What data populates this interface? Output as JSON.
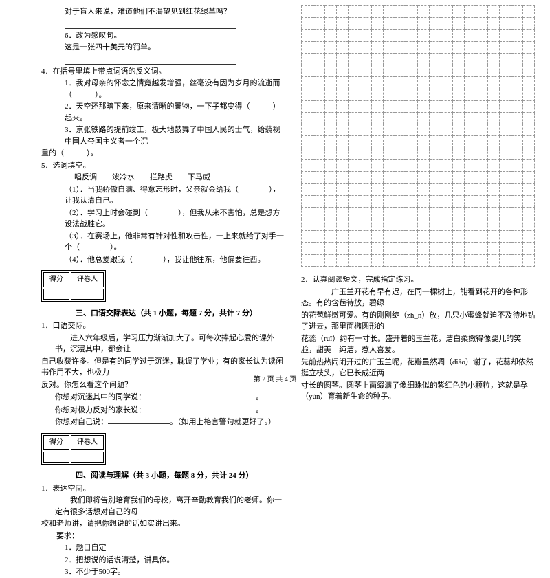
{
  "left": {
    "line1": "对于盲人来说，难道他们不渴望见到红花绿草吗？",
    "q6a": "6．改为感叹句。",
    "q6b": "这是一张四十美元的罚单。",
    "q4": "4．在括号里填上带点词语的反义词。",
    "q4_1": "1．我对母亲的怀念之情竟越发增强，丝毫没有因为岁月的流逝而（　　　）。",
    "q4_2": "2．天空还那暗下来，原来清晰的景物，一下子都变得（　　　）起来。",
    "q4_3": "3．京张铁路的提前竣工，极大地鼓舞了中国人民的士气，给藐视中国人帝国主义者一个沉",
    "q4_3b": "重的（　　　）。",
    "q5": "5．选词填空。",
    "q5_words": "唱反调　　泼冷水　　拦路虎　　下马威",
    "q5_1": "（1）．当我骄傲自满、得意忘形时，父亲就会给我（　　　　），让我认清自己。",
    "q5_2": "（2）．学习上时会碰到（　　　　），但我从来不害怕，总是想方设法战胜它。",
    "q5_3": "（3）．在赛场上，他非常有针对性和攻击性，一上来就给了对手一个（　　　　）。",
    "q5_4": "（4）．他总爱跟我（　　　　），我让他往东，他偏要往西。",
    "score_col1": "得分",
    "score_col2": "评卷人",
    "section3": "三、口语交际表达（共 1 小题，每题 7 分，共计 7 分）",
    "s3_1": "1．口语交际。",
    "s3_p1": "　　进入六年级后，学习压力渐渐加大了。可每次捧起心爱的课外书，沉浸其中，都会让",
    "s3_p2": "自己收获许多。但是有的同学过于沉迷，耽误了学业；有的家长认为读闲书作用不大，也极力",
    "s3_p3": "反对。你怎么看这个问题？",
    "s3_a": "你想对沉迷其中的同学说：",
    "s3_b": "你想对极力反对的家长说：",
    "s3_c": "你想对自己说：",
    "s3_c2": "。（如用上格言警句就更好了。）",
    "section4": "四、阅读与理解（共 3 小题，每题 8 分，共计 24 分）",
    "s4_1": "1．表达空间。",
    "s4_p1": "　　我们即将告别培育我们的母校，离开辛勤教育我们的老师。你一定有很多话想对自己的母",
    "s4_p2": "校和老师讲，请把你想说的话如实讲出来。",
    "s4_req": "　　要求：",
    "s4_r1": "1．题目自定",
    "s4_r2": "2．把想说的话说清楚，讲具体。",
    "s4_r3": "3．不少于500字。"
  },
  "right": {
    "q2": "2．认真阅读短文，完成指定练习。",
    "p1": "　　　　广玉兰开花有早有迟，在同一棵树上，能看到花开的各种形态。有的含苞待放，碧绿",
    "p2": "的花苞鲜嫩可爱。有的刚刚绽（zh_n）放，几只小蜜蜂就迫不及待地钻了进去，那里面椭圆形的",
    "p3": "花蕊（ruǐ）约有一寸长。盛开着的玉兰花，洁白柔嫩得像婴儿的笑脸，甜美　纯洁，惹人喜爱。",
    "p4": "先前热热闹闹开过的广玉兰呢，花瓣虽然凋（diāo）谢了，花蕊却依然挺立枝头，它已长成近两",
    "p5": "寸长的圆茎。圆茎上面缀满了像细珠似的紫红色的小颗粒，这就是孕（yùn）育着新生命的种子。"
  },
  "footer": "第 2 页 共 4 页"
}
